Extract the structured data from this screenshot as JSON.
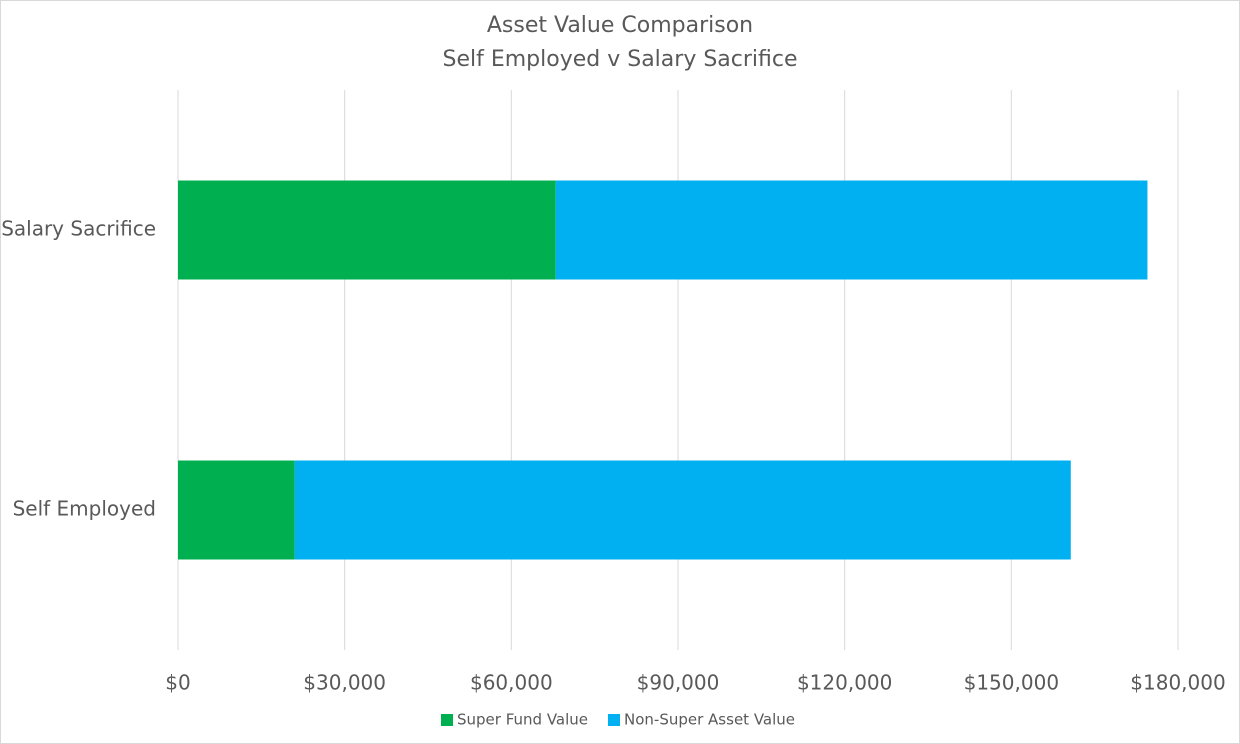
{
  "chart_data": {
    "type": "stacked-bar-horizontal",
    "title": "Asset Value  Comparison",
    "subtitle": "Self Employed v Salary Sacrifice",
    "categories": [
      "Salary Sacrifice",
      "Self Employed"
    ],
    "series": [
      {
        "name": "Super Fund Value",
        "color": "#00b050",
        "values": [
          68000,
          21000
        ]
      },
      {
        "name": "Non-Super Asset Value",
        "color": "#00b0f0",
        "values": [
          106500,
          139700
        ]
      }
    ],
    "xlim": [
      0,
      180000
    ],
    "xticks": [
      {
        "value": 0,
        "label": "$0"
      },
      {
        "value": 30000,
        "label": "$30,000"
      },
      {
        "value": 60000,
        "label": "$60,000"
      },
      {
        "value": 90000,
        "label": "$90,000"
      },
      {
        "value": 120000,
        "label": "$120,000"
      },
      {
        "value": 150000,
        "label": "$150,000"
      },
      {
        "value": 180000,
        "label": "$180,000"
      }
    ],
    "grid": true,
    "legend": "bottom"
  }
}
